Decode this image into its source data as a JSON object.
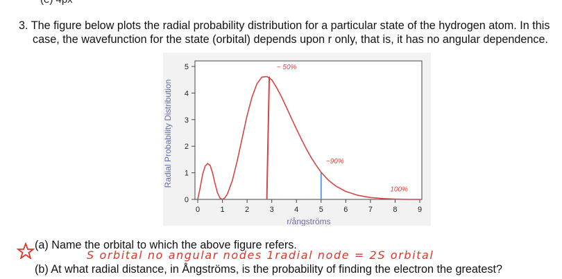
{
  "header": {
    "fragment": "(e) 4px"
  },
  "question": {
    "line1": "3. The figure below plots the radial probability distribution for a particular state of the hydrogen atom. In this",
    "line2": "case, the wavefunction for the state (orbital) depends upon r only, that is, it has no angular dependence."
  },
  "chart_data": {
    "type": "line",
    "xlabel": "r/ångströms",
    "ylabel": "Radial Probability Distribution",
    "xlim": [
      0,
      9
    ],
    "ylim": [
      0,
      5
    ],
    "xticks": [
      "0",
      "1",
      "2",
      "3",
      "4",
      "5",
      "6",
      "7",
      "8",
      "9"
    ],
    "yticks": [
      "0",
      "1",
      "2",
      "3",
      "4",
      "5"
    ],
    "grid": false,
    "series": [
      {
        "color": "#d64545",
        "x": [
          0,
          0.1,
          0.2,
          0.3,
          0.4,
          0.5,
          0.6,
          0.7,
          0.8,
          0.9,
          1.0,
          1.1,
          1.2,
          1.4,
          1.6,
          1.8,
          2.0,
          2.2,
          2.4,
          2.6,
          2.8,
          3.0,
          3.2,
          3.4,
          3.6,
          3.8,
          4.0,
          4.2,
          4.4,
          4.6,
          4.8,
          5.0,
          5.3,
          5.6,
          6.0,
          6.5,
          7.0,
          7.5,
          8.0,
          8.5,
          9.0
        ],
        "y": [
          0,
          0.45,
          0.95,
          1.25,
          1.35,
          1.28,
          1.0,
          0.6,
          0.25,
          0.05,
          0.0,
          0.06,
          0.2,
          0.7,
          1.45,
          2.3,
          3.15,
          3.85,
          4.35,
          4.6,
          4.62,
          4.5,
          4.2,
          3.85,
          3.45,
          3.05,
          2.65,
          2.27,
          1.9,
          1.57,
          1.28,
          1.02,
          0.72,
          0.5,
          0.3,
          0.15,
          0.07,
          0.03,
          0.01,
          0.0,
          0.0
        ]
      }
    ],
    "annotations": [
      {
        "text": "~ 50%",
        "x": 3.2,
        "y": 4.9,
        "color": "#d64545"
      },
      {
        "text": "~90%",
        "x": 5.2,
        "y": 1.35,
        "color": "#d64545"
      },
      {
        "text": "100%",
        "x": 7.8,
        "y": 0.3,
        "color": "#d64545"
      }
    ],
    "markers": [
      {
        "x": 2.9,
        "y": 4.62,
        "color": "#d64545",
        "from_x": 2.8
      },
      {
        "x": 5.0,
        "y": 1.02,
        "color": "#5aa0d8",
        "from_x": 5.0
      }
    ]
  },
  "part_a": "(a) Name the orbital to which the above figure refers.",
  "answer_a": "S orbital no angular nodes 1radial node = 2S orbital",
  "part_b": "(b) At what radial distance, in Ångströms, is the probability of finding the electron the greatest?",
  "colors": {
    "curve": "#d64545",
    "annotation": "#d64545",
    "marker_blue": "#5aa0d8",
    "axis_label": "#6c6ca8",
    "answer": "#e0352b"
  }
}
